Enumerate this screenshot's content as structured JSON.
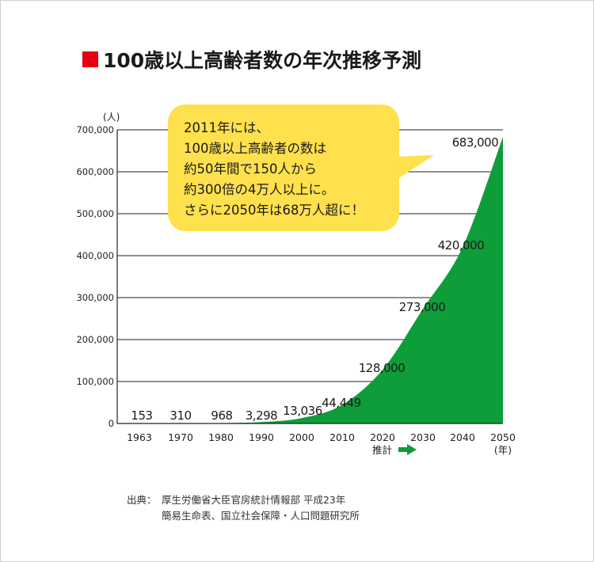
{
  "title": "100歳以上高齢者数の年次推移予測",
  "colors": {
    "title_mark": "#e60012",
    "area": "#0f9d3a",
    "bubble": "#ffe04d",
    "arrow": "#0f9d3a"
  },
  "bubble": {
    "lines": [
      "2011年には、",
      "100歳以上高齢者の数は",
      "約50年間で150人から",
      "約300倍の4万人以上に。",
      "さらに2050年は68万人超に！"
    ]
  },
  "chart_data": {
    "type": "area",
    "y_unit": "(人)",
    "x_unit": "(年)",
    "ylim": [
      0,
      700000
    ],
    "yticks": [
      "0",
      "100,000",
      "200,000",
      "300,000",
      "400,000",
      "500,000",
      "600,000",
      "700,000"
    ],
    "categories": [
      "1963",
      "1970",
      "1980",
      "1990",
      "2000",
      "2010",
      "2020",
      "2030",
      "2040",
      "2050"
    ],
    "points": [
      {
        "x": 1963,
        "y": 153,
        "label": "153"
      },
      {
        "x": 1970,
        "y": 310,
        "label": "310"
      },
      {
        "x": 1980,
        "y": 968,
        "label": "968"
      },
      {
        "x": 1990,
        "y": 3298,
        "label": "3,298"
      },
      {
        "x": 2000,
        "y": 13036,
        "label": "13,036"
      },
      {
        "x": 2010,
        "y": 44449,
        "label": "44,449"
      },
      {
        "x": 2020,
        "y": 128000,
        "label": "128,000"
      },
      {
        "x": 2030,
        "y": 273000,
        "label": "273,000"
      },
      {
        "x": 2040,
        "y": 420000,
        "label": "420,000"
      },
      {
        "x": 2050,
        "y": 683000,
        "label": "683,000"
      }
    ],
    "estimate_label": "推計",
    "grid": true
  },
  "source": {
    "label": "出典：",
    "line1": "厚生労働省大臣官房統計情報部 平成23年",
    "line2": "簡易生命表、国立社会保障・人口問題研究所"
  }
}
